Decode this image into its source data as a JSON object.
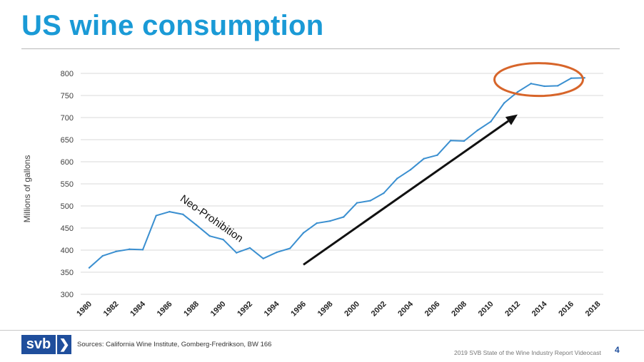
{
  "title": "US wine consumption",
  "chart_data": {
    "type": "line",
    "title": "US wine consumption",
    "xlabel": "",
    "ylabel": "Millions of gallons",
    "ylim": [
      300,
      800
    ],
    "yticks": [
      300,
      350,
      400,
      450,
      500,
      550,
      600,
      650,
      700,
      750,
      800
    ],
    "xticks": [
      "1980",
      "1982",
      "1984",
      "1986",
      "1988",
      "1990",
      "1992",
      "1994",
      "1996",
      "1998",
      "2000",
      "2002",
      "2004",
      "2006",
      "2008",
      "2010",
      "2012",
      "2014",
      "2016",
      "2018"
    ],
    "grid": true,
    "x": [
      1980,
      1981,
      1982,
      1983,
      1984,
      1985,
      1986,
      1987,
      1988,
      1989,
      1990,
      1991,
      1992,
      1993,
      1994,
      1995,
      1996,
      1997,
      1998,
      1999,
      2000,
      2001,
      2002,
      2003,
      2004,
      2005,
      2006,
      2007,
      2008,
      2009,
      2010,
      2011,
      2012,
      2013,
      2014,
      2015,
      2016,
      2017
    ],
    "series": [
      {
        "color": "#3a8fd0",
        "values": [
          360,
          387,
          397,
          402,
          401,
          478,
          487,
          481,
          457,
          432,
          424,
          394,
          405,
          381,
          395,
          404,
          439,
          461,
          466,
          475,
          507,
          512,
          529,
          562,
          582,
          607,
          615,
          648,
          647,
          671,
          691,
          733,
          758,
          777,
          771,
          772,
          789,
          790
        ]
      }
    ],
    "annotations": [
      {
        "type": "text",
        "text": "Neo-Prohibition",
        "x": 1989,
        "y": 465
      },
      {
        "type": "arrow",
        "color": "#111111",
        "from": {
          "x": 1996,
          "y": 367
        },
        "to": {
          "x": 2012,
          "y": 707
        }
      },
      {
        "type": "ellipse",
        "color": "#d7652a",
        "center": {
          "x": 2014,
          "y": 778
        }
      }
    ]
  },
  "footer": {
    "logo_text": "svb",
    "logo_arrow": "❯",
    "sources": "Sources: California Wine Institute, Gomberg-Fredrikson, BW 166",
    "report": "2019 SVB State of the Wine Industry Report Videocast",
    "page": "4"
  }
}
